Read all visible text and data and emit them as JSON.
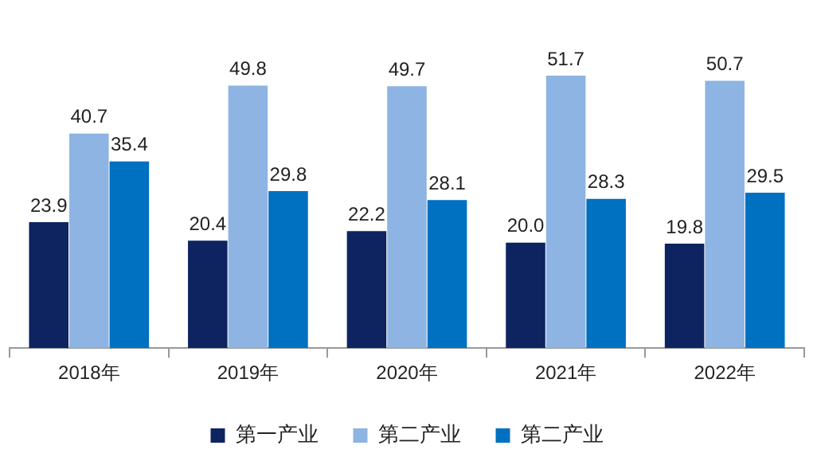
{
  "chart_data": {
    "type": "bar",
    "categories": [
      "2018年",
      "2019年",
      "2020年",
      "2021年",
      "2022年"
    ],
    "series": [
      {
        "name": "第一产业",
        "color": "#0d2461",
        "values": [
          23.9,
          20.4,
          22.2,
          20.0,
          19.8
        ],
        "value_labels": [
          "23.9",
          "20.4",
          "22.2",
          "20.0",
          "19.8"
        ]
      },
      {
        "name": "第二产业",
        "color": "#8db4e2",
        "values": [
          40.7,
          49.8,
          49.7,
          51.7,
          50.7
        ],
        "value_labels": [
          "40.7",
          "49.8",
          "49.7",
          "51.7",
          "50.7"
        ]
      },
      {
        "name": "第二产业",
        "color": "#0070c0",
        "values": [
          35.4,
          29.8,
          28.1,
          28.3,
          29.5
        ],
        "value_labels": [
          "35.4",
          "29.8",
          "28.1",
          "28.3",
          "29.5"
        ]
      }
    ],
    "grid": false,
    "legend": "bottom"
  }
}
